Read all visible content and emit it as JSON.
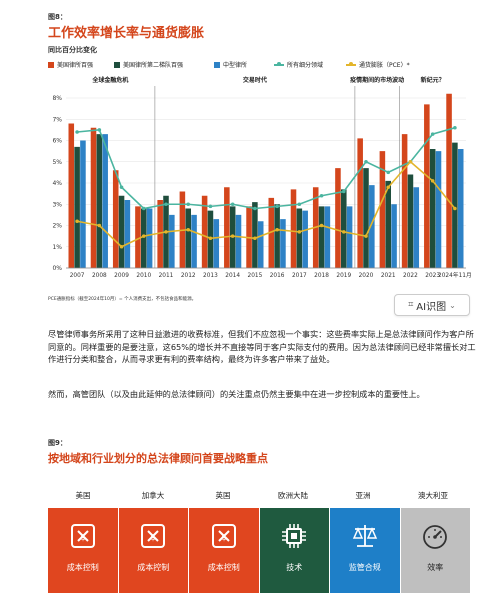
{
  "fig8": {
    "label": "图8：",
    "title": "工作效率增长率与通货膨胀",
    "subtitle": "同比百分比变化",
    "note": "PCE通胀指标（截至2024年10月）= 个人消费支出，不包括食品和能源。"
  },
  "legend": [
    {
      "label": "美国律所百强",
      "kind": "bar",
      "color": "#d4461c"
    },
    {
      "label": "美国律所第二梯队百强",
      "kind": "bar",
      "color": "#1f4e3d"
    },
    {
      "label": "中型律所",
      "kind": "bar",
      "color": "#2e82c6"
    },
    {
      "label": "所有细分领域",
      "kind": "line",
      "color": "#4bb5a0"
    },
    {
      "label": "通货膨胀（PCE）*",
      "kind": "line",
      "color": "#e3b52b"
    }
  ],
  "chart_data": {
    "type": "bar",
    "title": "工作效率增长率与通货膨胀",
    "ylabel": "同比百分比变化",
    "ylim": [
      0,
      8
    ],
    "yticks": [
      "0%",
      "1%",
      "2%",
      "3%",
      "4%",
      "5%",
      "6%",
      "7%",
      "8%"
    ],
    "categories": [
      "2007",
      "2008",
      "2009",
      "2010",
      "2011",
      "2012",
      "2013",
      "2014",
      "2015",
      "2016",
      "2017",
      "2018",
      "2019",
      "2020",
      "2021",
      "2022",
      "2023",
      "2024年11月"
    ],
    "periods": [
      {
        "label": "全球金融危机",
        "from": 0,
        "to": 3
      },
      {
        "label": "交易时代",
        "from": 4,
        "to": 12
      },
      {
        "label": "疫情期间的市场波动",
        "from": 13,
        "to": 14
      },
      {
        "label": "新纪元？",
        "from": 15,
        "to": 17
      }
    ],
    "series": [
      {
        "name": "美国律所百强",
        "kind": "bar",
        "color": "#d4461c",
        "values": [
          6.8,
          6.6,
          4.6,
          2.9,
          3.2,
          3.6,
          3.4,
          3.8,
          2.9,
          3.3,
          3.7,
          3.8,
          4.7,
          6.1,
          5.5,
          6.3,
          7.7,
          8.2
        ]
      },
      {
        "name": "美国律所第二梯队百强",
        "kind": "bar",
        "color": "#1f4e3d",
        "values": [
          5.7,
          6.3,
          3.4,
          2.8,
          3.4,
          2.8,
          2.7,
          2.9,
          3.1,
          3.0,
          2.8,
          2.9,
          3.7,
          4.7,
          4.1,
          4.4,
          5.6,
          5.9
        ]
      },
      {
        "name": "中型律所",
        "kind": "bar",
        "color": "#2e82c6",
        "values": [
          6.0,
          6.3,
          3.2,
          2.8,
          2.5,
          2.5,
          2.3,
          2.5,
          2.2,
          2.3,
          2.7,
          2.9,
          2.9,
          3.9,
          3.0,
          3.8,
          5.5,
          5.6
        ]
      },
      {
        "name": "所有细分领域",
        "kind": "line",
        "color": "#4bb5a0",
        "values": [
          6.4,
          6.5,
          3.8,
          2.8,
          3.0,
          3.0,
          2.9,
          3.0,
          2.8,
          2.9,
          3.0,
          3.4,
          3.6,
          5.0,
          4.5,
          5.0,
          6.3,
          6.6
        ]
      },
      {
        "name": "通货膨胀（PCE）*",
        "kind": "line",
        "color": "#e3b52b",
        "values": [
          2.2,
          2.0,
          1.0,
          1.5,
          1.7,
          1.8,
          1.4,
          1.5,
          1.4,
          1.8,
          1.7,
          2.0,
          1.7,
          1.5,
          3.8,
          5.0,
          4.1,
          2.8
        ]
      }
    ]
  },
  "ai_button": {
    "label": "AI识图"
  },
  "paragraphs": {
    "p1": "尽管律师事务所采用了这种日益激进的收费标准，但我们不应忽视一个事实：这些费率实际上是总法律顾问作为客户所同意的。同样重要的是要注意，这65%的增长并不直接等同于客户实际支付的费用。因为总法律顾问已经非常擅长对工作进行分类和整合，从而寻求更有利的费率结构，最终为许多客户带来了益处。",
    "p2": "然而，高管团队（以及由此延伸的总法律顾问）的关注重点仍然主要集中在进一步控制成本的重要性上。"
  },
  "fig9": {
    "label": "图9：",
    "title": "按地域和行业划分的总法律顾问首要战略重点",
    "regions": [
      "美国",
      "加拿大",
      "英国",
      "欧洲大陆",
      "亚洲",
      "澳大利亚"
    ],
    "cards": [
      {
        "label": "成本控制",
        "icon": "cost-icon",
        "color": "#e0461f"
      },
      {
        "label": "成本控制",
        "icon": "cost-icon",
        "color": "#e0461f"
      },
      {
        "label": "成本控制",
        "icon": "cost-icon",
        "color": "#e0461f"
      },
      {
        "label": "技术",
        "icon": "chip-icon",
        "color": "#1f5a3f"
      },
      {
        "label": "监管合规",
        "icon": "scales-icon",
        "color": "#1e7fc8"
      },
      {
        "label": "效率",
        "icon": "gauge-icon",
        "color": "#bfbfbf"
      }
    ]
  }
}
